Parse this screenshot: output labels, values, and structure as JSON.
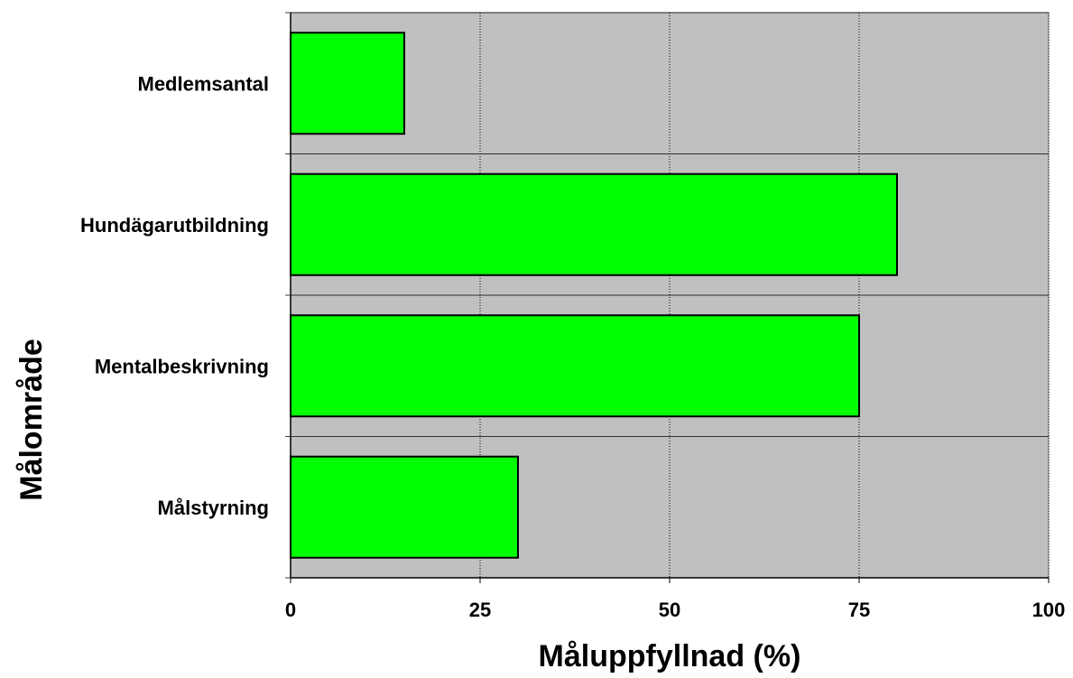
{
  "chart_data": {
    "type": "bar",
    "orientation": "horizontal",
    "categories": [
      "Medlemsantal",
      "Hundägarutbildning",
      "Mentalbeskrivning",
      "Målstyrning"
    ],
    "values": [
      15,
      80,
      75,
      30
    ],
    "xlabel": "Måluppfyllnad (%)",
    "ylabel": "Målområde",
    "xlim": [
      0,
      100
    ],
    "xticks": [
      "0",
      "25",
      "50",
      "75",
      "100"
    ],
    "grid": "vertical dotted at x ticks",
    "legend": "none",
    "colors": {
      "bar_fill": "#00ff00",
      "bar_stroke": "#000000",
      "plot_background": "#c0c0c0",
      "gridline": "#000000"
    }
  }
}
